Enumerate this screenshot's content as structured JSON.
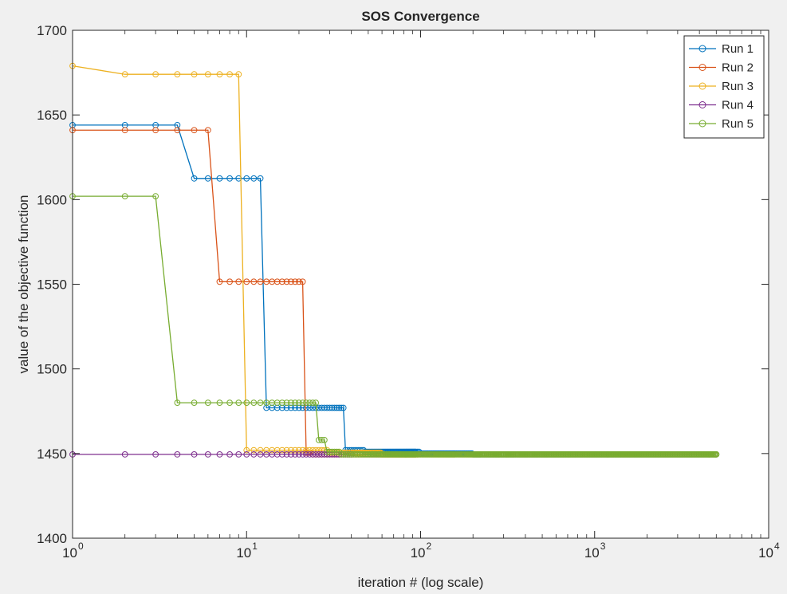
{
  "window": {
    "background": "#f0f0f0",
    "axes_background": "#ffffff"
  },
  "chart_data": {
    "type": "line",
    "title": "SOS Convergence",
    "xlabel": "iteration # (log scale)",
    "ylabel": "value of the objective function",
    "xscale": "log",
    "xlim": [
      1,
      10000
    ],
    "ylim": [
      1400,
      1700
    ],
    "xticks": [
      {
        "value": 1,
        "base": "10",
        "exp": "0"
      },
      {
        "value": 10,
        "base": "10",
        "exp": "1"
      },
      {
        "value": 100,
        "base": "10",
        "exp": "2"
      },
      {
        "value": 1000,
        "base": "10",
        "exp": "3"
      },
      {
        "value": 10000,
        "base": "10",
        "exp": "4"
      }
    ],
    "yticks": [
      "1400",
      "1450",
      "1500",
      "1550",
      "1600",
      "1650",
      "1700"
    ],
    "grid": false,
    "legend_position": "top-right",
    "marker": "circle",
    "series": [
      {
        "name": "Run 1",
        "color": "#0072BD",
        "last_iter": 5000,
        "segments": [
          [
            1,
            1644
          ],
          [
            5,
            1612.5
          ],
          [
            13,
            1477
          ],
          [
            37,
            1452
          ],
          [
            48,
            1451
          ],
          [
            100,
            1450
          ],
          [
            200,
            1449.5
          ]
        ]
      },
      {
        "name": "Run 2",
        "color": "#D95319",
        "last_iter": 96,
        "segments": [
          [
            1,
            1641
          ],
          [
            7,
            1551.5
          ],
          [
            22,
            1450.5
          ],
          [
            24,
            1449.5
          ]
        ]
      },
      {
        "name": "Run 3",
        "color": "#EDB120",
        "last_iter": 5000,
        "segments": [
          [
            1,
            1679
          ],
          [
            2,
            1674
          ],
          [
            10,
            1452
          ],
          [
            30,
            1450.5
          ],
          [
            60,
            1449.5
          ]
        ]
      },
      {
        "name": "Run 4",
        "color": "#7E2F8E",
        "last_iter": 40,
        "segments": [
          [
            1,
            1449.5
          ]
        ]
      },
      {
        "name": "Run 5",
        "color": "#77AC30",
        "last_iter": 5000,
        "segments": [
          [
            1,
            1602
          ],
          [
            4,
            1480
          ],
          [
            26,
            1458
          ],
          [
            29,
            1451
          ],
          [
            35,
            1449.5
          ]
        ]
      }
    ]
  }
}
